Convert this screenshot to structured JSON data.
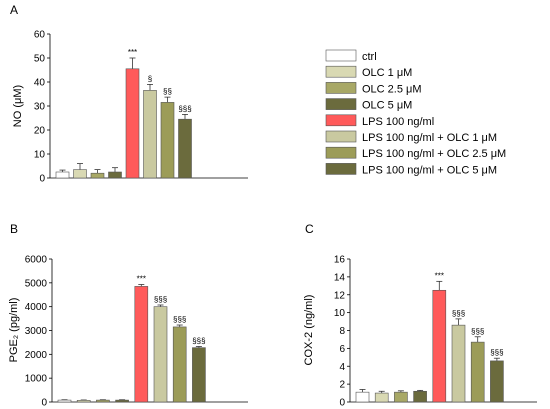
{
  "legend": {
    "entries": [
      {
        "label": "ctrl",
        "color": "#ffffff"
      },
      {
        "label": "OLC 1 μM",
        "color": "#d9d9b3"
      },
      {
        "label": "OLC 2.5 μM",
        "color": "#a8a866"
      },
      {
        "label": "OLC 5 μM",
        "color": "#6b6b3d"
      },
      {
        "label": "LPS 100 ng/ml",
        "color": "#ff5a5a"
      },
      {
        "label": "LPS 100 ng/ml + OLC 1 μM",
        "color": "#c9c9a0"
      },
      {
        "label": "LPS 100 ng/ml + OLC 2.5 μM",
        "color": "#9c9c58"
      },
      {
        "label": "LPS 100 ng/ml + OLC 5 μM",
        "color": "#6b6b3d"
      }
    ]
  },
  "chart_data": [
    {
      "type": "bar",
      "panel": "A",
      "ylabel": "NO (μM)",
      "ylim": [
        0,
        60
      ],
      "yticks": [
        0,
        10,
        20,
        30,
        40,
        50,
        60
      ],
      "values": [
        2.5,
        3.5,
        2,
        2.5,
        45.5,
        36.5,
        31.5,
        24.5
      ],
      "errors": [
        0.8,
        2.5,
        1.5,
        1.8,
        4.5,
        2.5,
        2.2,
        2.0
      ],
      "significance": [
        "",
        "",
        "",
        "",
        "***",
        "§",
        "§§",
        "§§§"
      ]
    },
    {
      "type": "bar",
      "panel": "B",
      "ylabel": "PGE₂ (pg/ml)",
      "ylim": [
        0,
        6000
      ],
      "yticks": [
        0,
        1000,
        2000,
        3000,
        4000,
        5000,
        6000
      ],
      "values": [
        80,
        70,
        80,
        80,
        4850,
        4000,
        3150,
        2280
      ],
      "errors": [
        15,
        15,
        15,
        15,
        80,
        70,
        80,
        50
      ],
      "significance": [
        "",
        "",
        "",
        "",
        "***",
        "§§§",
        "§§§",
        "§§§"
      ]
    },
    {
      "type": "bar",
      "panel": "C",
      "ylabel": "COX-2 (ng/ml)",
      "ylim": [
        0,
        16
      ],
      "yticks": [
        0,
        2,
        4,
        6,
        8,
        10,
        12,
        14,
        16
      ],
      "values": [
        1.1,
        1.0,
        1.1,
        1.2,
        12.5,
        8.6,
        6.7,
        4.6
      ],
      "errors": [
        0.3,
        0.2,
        0.15,
        0.1,
        1.0,
        0.7,
        0.6,
        0.3
      ],
      "significance": [
        "",
        "",
        "",
        "",
        "***",
        "§§§",
        "§§§",
        "§§§"
      ]
    }
  ]
}
